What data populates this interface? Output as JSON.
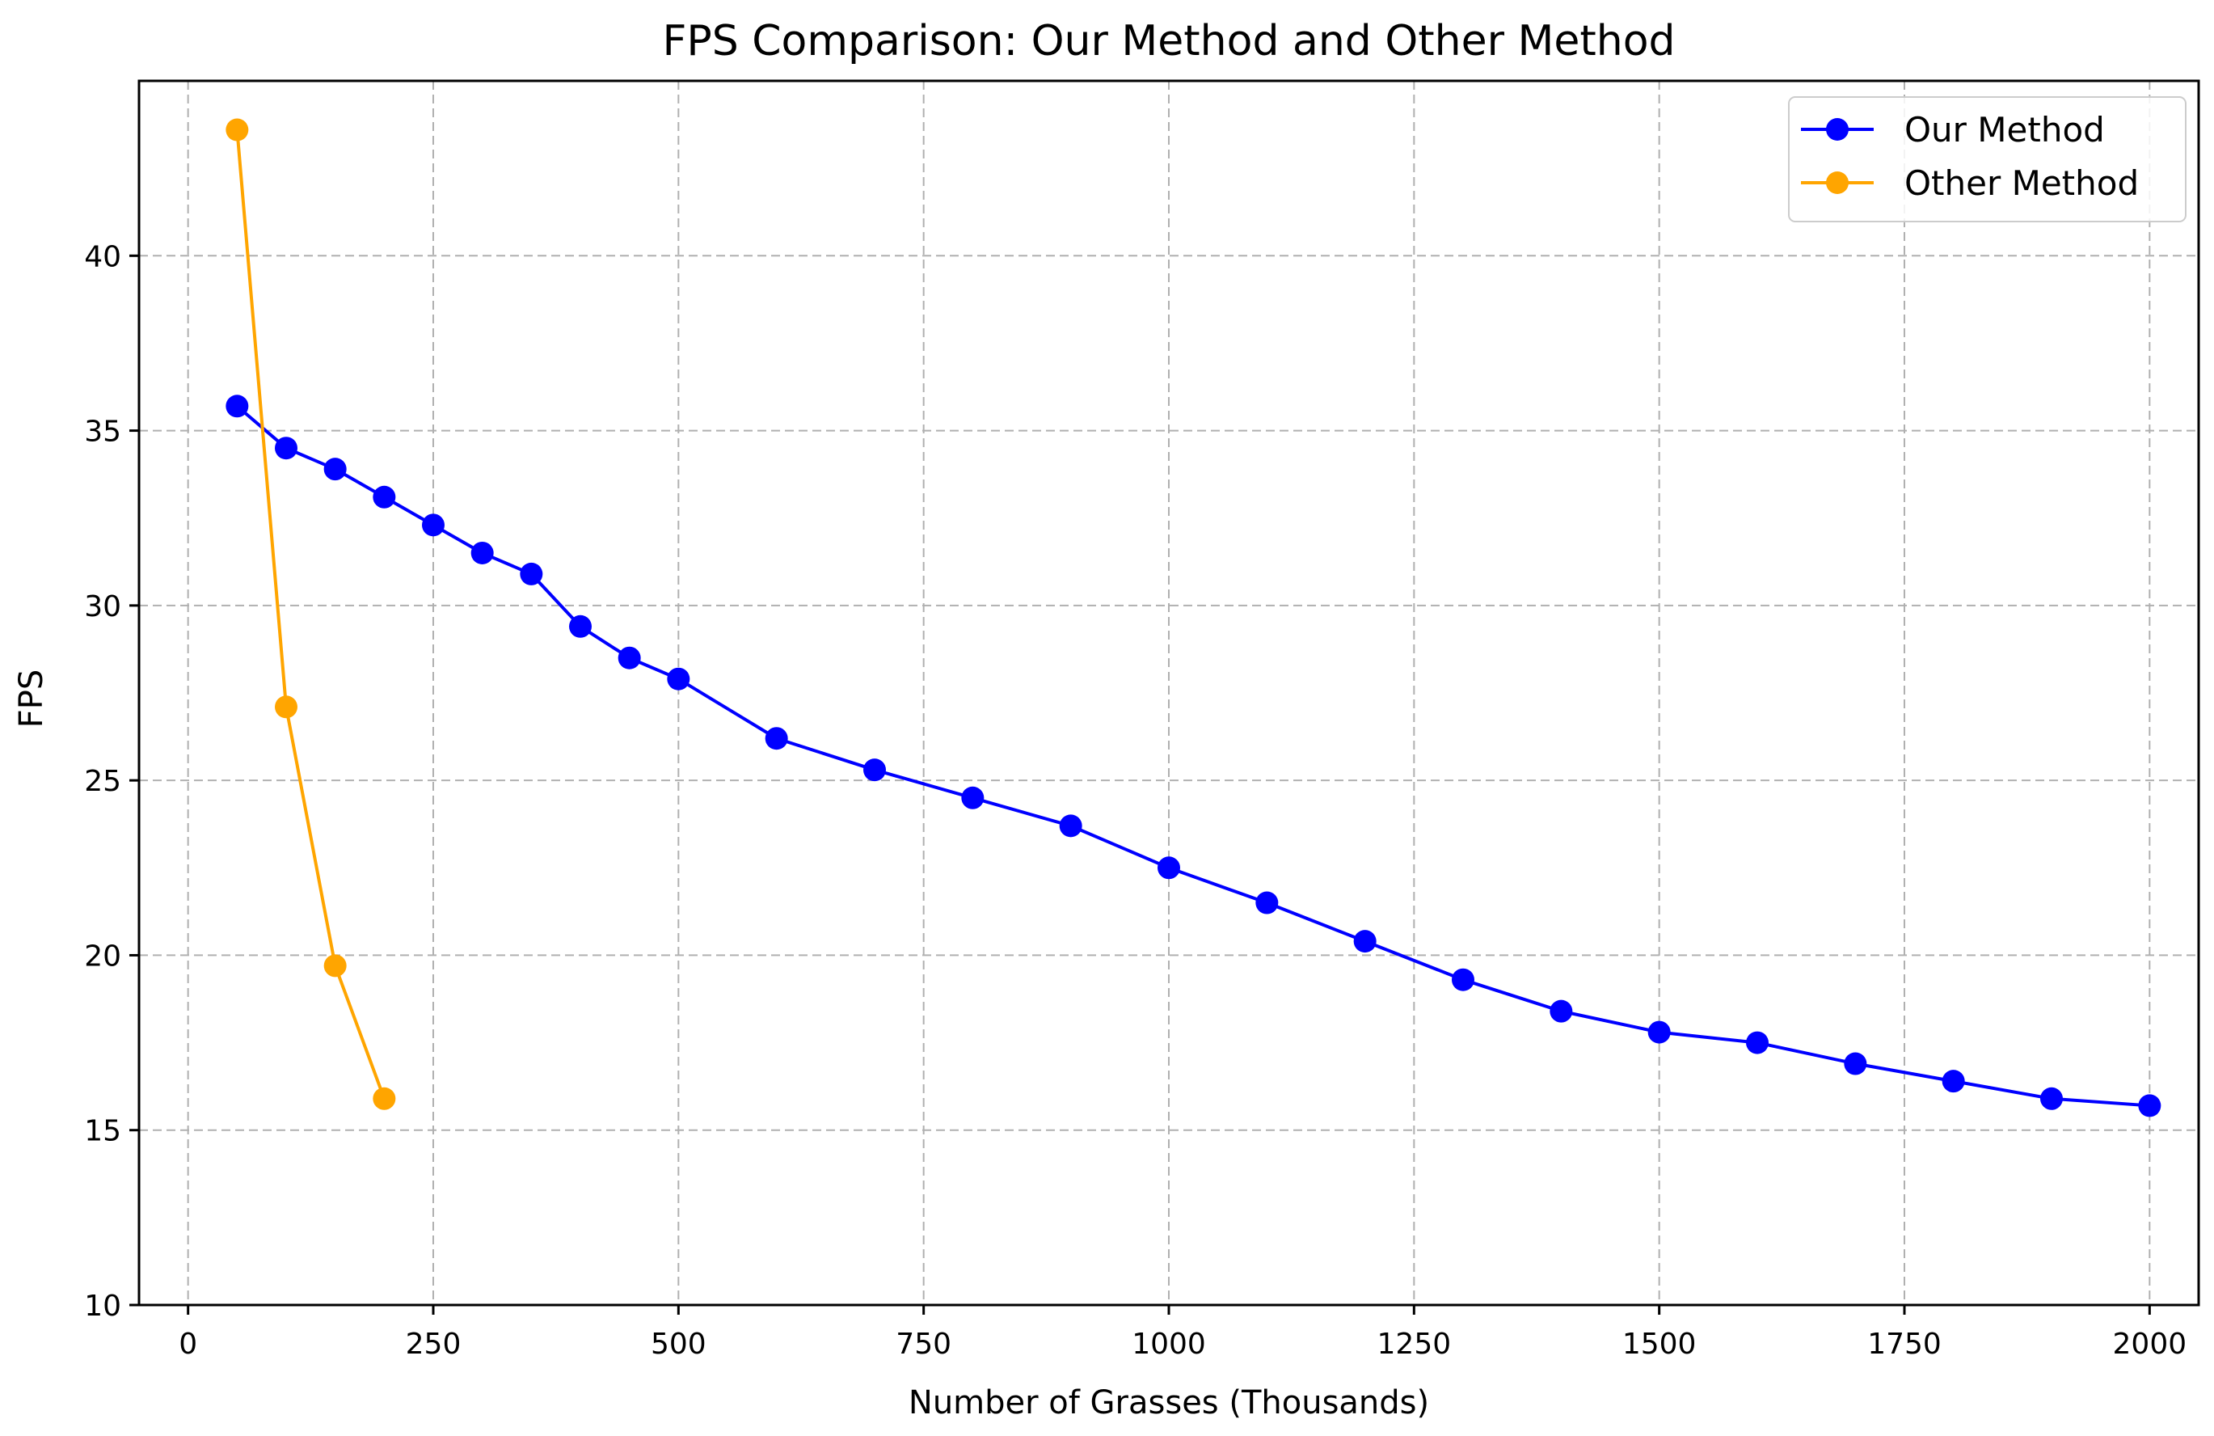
{
  "chart_data": {
    "type": "line",
    "title": "FPS Comparison: Our Method and Other Method",
    "xlabel": "Number of Grasses (Thousands)",
    "ylabel": "FPS",
    "xlim": [
      -50,
      2050
    ],
    "ylim": [
      10,
      45
    ],
    "xticks": [
      0,
      250,
      500,
      750,
      1000,
      1250,
      1500,
      1750,
      2000
    ],
    "yticks": [
      10,
      15,
      20,
      25,
      30,
      35,
      40
    ],
    "grid": true,
    "legend_position": "top-right",
    "series": [
      {
        "name": "Our Method",
        "color": "#0000ff",
        "x": [
          50,
          100,
          150,
          200,
          250,
          300,
          350,
          400,
          450,
          500,
          600,
          700,
          800,
          900,
          1000,
          1100,
          1200,
          1300,
          1400,
          1500,
          1600,
          1700,
          1800,
          1900,
          2000
        ],
        "y": [
          35.7,
          34.5,
          33.9,
          33.1,
          32.3,
          31.5,
          30.9,
          29.4,
          28.5,
          27.9,
          26.2,
          25.3,
          24.5,
          23.7,
          22.5,
          21.5,
          20.4,
          19.3,
          18.4,
          17.8,
          17.5,
          16.9,
          16.4,
          15.9,
          15.7
        ]
      },
      {
        "name": "Other Method",
        "color": "#ffa500",
        "x": [
          50,
          100,
          150,
          200
        ],
        "y": [
          43.6,
          27.1,
          19.7,
          15.9
        ]
      }
    ]
  }
}
